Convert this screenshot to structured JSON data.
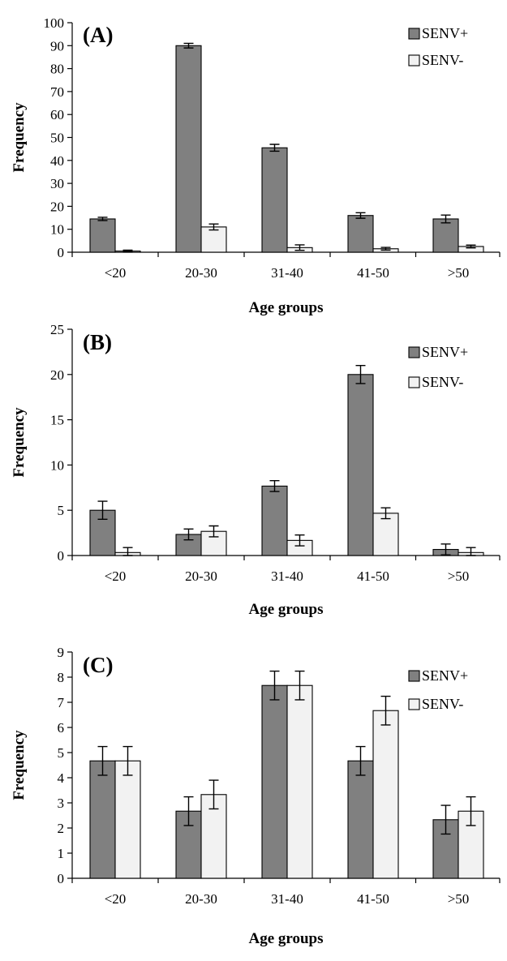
{
  "chart_data": [
    {
      "type": "bar",
      "panel_label": "(A)",
      "categories": [
        "<20",
        "20-30",
        "31-40",
        "41-50",
        ">50"
      ],
      "series": [
        {
          "name": "SENV+",
          "color": "#808080",
          "values": [
            14.5,
            90,
            45.5,
            16,
            14.5
          ],
          "errors": [
            0.7,
            1.0,
            1.5,
            1.2,
            1.7
          ]
        },
        {
          "name": "SENV-",
          "color": "#f2f2f2",
          "values": [
            0.5,
            11,
            2,
            1.5,
            2.5
          ],
          "errors": [
            0.4,
            1.3,
            1.2,
            0.6,
            0.6
          ]
        }
      ],
      "xlabel": "Age groups",
      "ylabel": "Frequency",
      "ylim": [
        0,
        100
      ],
      "yticks": [
        0,
        10,
        20,
        30,
        40,
        50,
        60,
        70,
        80,
        90,
        100
      ],
      "grid": false,
      "legend": "top-right"
    },
    {
      "type": "bar",
      "panel_label": "(B)",
      "categories": [
        "<20",
        "20-30",
        "31-40",
        "41-50",
        ">50"
      ],
      "series": [
        {
          "name": "SENV+",
          "color": "#808080",
          "values": [
            5,
            2.33,
            7.67,
            20,
            0.67
          ],
          "errors": [
            1.0,
            0.6,
            0.6,
            1.0,
            0.6
          ]
        },
        {
          "name": "SENV-",
          "color": "#f2f2f2",
          "values": [
            0.33,
            2.67,
            1.67,
            4.67,
            0.33
          ],
          "errors": [
            0.55,
            0.6,
            0.6,
            0.6,
            0.55
          ]
        }
      ],
      "xlabel": "Age groups",
      "ylabel": "Frequency",
      "ylim": [
        0,
        25
      ],
      "yticks": [
        0,
        5,
        10,
        15,
        20,
        25
      ],
      "grid": false,
      "legend": "top-right"
    },
    {
      "type": "bar",
      "panel_label": "(C)",
      "categories": [
        "<20",
        "20-30",
        "31-40",
        "41-50",
        ">50"
      ],
      "series": [
        {
          "name": "SENV+",
          "color": "#808080",
          "values": [
            4.67,
            2.67,
            7.67,
            4.67,
            2.33
          ],
          "errors": [
            0.57,
            0.57,
            0.57,
            0.57,
            0.57
          ]
        },
        {
          "name": "SENV-",
          "color": "#f2f2f2",
          "values": [
            4.67,
            3.33,
            7.67,
            6.67,
            2.67
          ],
          "errors": [
            0.57,
            0.57,
            0.57,
            0.57,
            0.57
          ]
        }
      ],
      "xlabel": "Age groups",
      "ylabel": "Frequency",
      "ylim": [
        0,
        9
      ],
      "yticks": [
        0,
        1,
        2,
        3,
        4,
        5,
        6,
        7,
        8,
        9
      ],
      "grid": false,
      "legend": "top-right"
    }
  ]
}
